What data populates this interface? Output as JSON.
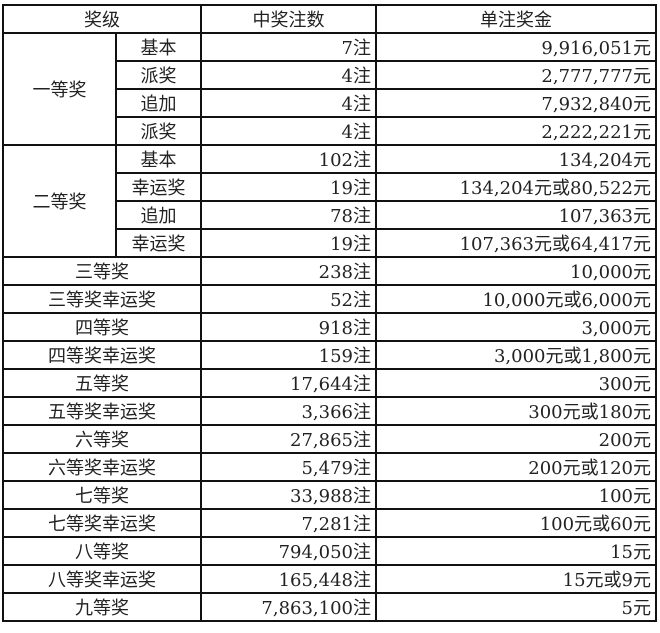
{
  "header": {
    "level": "奖级",
    "count": "中奖注数",
    "prize": "单注奖金"
  },
  "groups": [
    {
      "name": "一等奖",
      "rows": [
        {
          "sub": "基本",
          "count": "7注",
          "prize": "9,916,051元"
        },
        {
          "sub": "派奖",
          "count": "4注",
          "prize": "2,777,777元"
        },
        {
          "sub": "追加",
          "count": "4注",
          "prize": "7,932,840元"
        },
        {
          "sub": "派奖",
          "count": "4注",
          "prize": "2,222,221元"
        }
      ]
    },
    {
      "name": "二等奖",
      "rows": [
        {
          "sub": "基本",
          "count": "102注",
          "prize": "134,204元"
        },
        {
          "sub": "幸运奖",
          "count": "19注",
          "prize": "134,204元或80,522元"
        },
        {
          "sub": "追加",
          "count": "78注",
          "prize": "107,363元"
        },
        {
          "sub": "幸运奖",
          "count": "19注",
          "prize": "107,363元或64,417元"
        }
      ]
    }
  ],
  "rows": [
    {
      "name": "三等奖",
      "count": "238注",
      "prize": "10,000元"
    },
    {
      "name": "三等奖幸运奖",
      "count": "52注",
      "prize": "10,000元或6,000元"
    },
    {
      "name": "四等奖",
      "count": "918注",
      "prize": "3,000元"
    },
    {
      "name": "四等奖幸运奖",
      "count": "159注",
      "prize": "3,000元或1,800元"
    },
    {
      "name": "五等奖",
      "count": "17,644注",
      "prize": "300元"
    },
    {
      "name": "五等奖幸运奖",
      "count": "3,366注",
      "prize": "300元或180元"
    },
    {
      "name": "六等奖",
      "count": "27,865注",
      "prize": "200元"
    },
    {
      "name": "六等奖幸运奖",
      "count": "5,479注",
      "prize": "200元或120元"
    },
    {
      "name": "七等奖",
      "count": "33,988注",
      "prize": "100元"
    },
    {
      "name": "七等奖幸运奖",
      "count": "7,281注",
      "prize": "100元或60元"
    },
    {
      "name": "八等奖",
      "count": "794,050注",
      "prize": "15元"
    },
    {
      "name": "八等奖幸运奖",
      "count": "165,448注",
      "prize": "15元或9元"
    },
    {
      "name": "九等奖",
      "count": "7,863,100注",
      "prize": "5元"
    }
  ]
}
